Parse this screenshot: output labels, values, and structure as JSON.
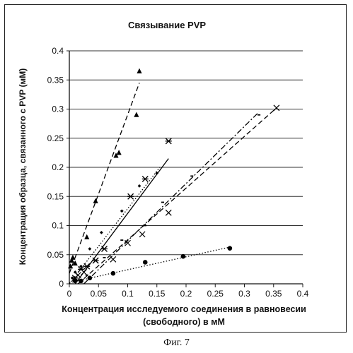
{
  "caption": "Фиг. 7",
  "chart_data": {
    "type": "scatter",
    "title": "Связывание PVP",
    "xlabel": "Концентрация исследуемого соединения в равновесии (свободного) в мМ",
    "xlabel_lines": [
      "Концентрация исследуемого соединения в равновесии",
      "(свободного) в мМ"
    ],
    "ylabel": "Концентрация образца, связанного с PVP (мМ)",
    "xlim": [
      0,
      0.4
    ],
    "ylim": [
      0,
      0.4
    ],
    "xticks": [
      "0",
      "0.05",
      "0.1",
      "0.15",
      "0.2",
      "0.25",
      "0.3",
      "0.35",
      "0.4"
    ],
    "yticks": [
      "0",
      "0.05",
      "0.1",
      "0.15",
      "0.2",
      "0.25",
      "0.3",
      "0.35",
      "0.4"
    ],
    "grid": "horizontal",
    "series": [
      {
        "marker": "triangle",
        "line": "dashed",
        "points": [
          [
            0.002,
            0.03
          ],
          [
            0.004,
            0.04
          ],
          [
            0.006,
            0.045
          ],
          [
            0.01,
            0.035
          ],
          [
            0.03,
            0.08
          ],
          [
            0.045,
            0.142
          ],
          [
            0.08,
            0.22
          ],
          [
            0.085,
            0.225
          ],
          [
            0.115,
            0.29
          ],
          [
            0.12,
            0.365
          ]
        ],
        "fit": [
          [
            0.0,
            0.018
          ],
          [
            0.12,
            0.345
          ]
        ]
      },
      {
        "marker": "diamond",
        "line": "dotted",
        "points": [
          [
            0.005,
            0.01
          ],
          [
            0.01,
            0.02
          ],
          [
            0.02,
            0.03
          ],
          [
            0.035,
            0.06
          ],
          [
            0.055,
            0.088
          ],
          [
            0.09,
            0.125
          ],
          [
            0.12,
            0.168
          ],
          [
            0.15,
            0.19
          ]
        ],
        "fit": [
          [
            0.0,
            0.0
          ],
          [
            0.155,
            0.2
          ]
        ]
      },
      {
        "marker": "star",
        "line": "solid",
        "points": [
          [
            0.01,
            0.01
          ],
          [
            0.02,
            0.025
          ],
          [
            0.03,
            0.03
          ],
          [
            0.045,
            0.04
          ],
          [
            0.06,
            0.06
          ],
          [
            0.105,
            0.15
          ],
          [
            0.13,
            0.18
          ],
          [
            0.17,
            0.245
          ]
        ],
        "fit": [
          [
            0.01,
            0.0
          ],
          [
            0.17,
            0.215
          ]
        ]
      },
      {
        "marker": "dash",
        "line": "dashdot",
        "points": [
          [
            0.01,
            0.005
          ],
          [
            0.03,
            0.015
          ],
          [
            0.06,
            0.045
          ],
          [
            0.09,
            0.075
          ],
          [
            0.13,
            0.1
          ],
          [
            0.16,
            0.14
          ],
          [
            0.21,
            0.185
          ],
          [
            0.325,
            0.29
          ]
        ],
        "fit": [
          [
            0.025,
            0.0
          ],
          [
            0.325,
            0.295
          ]
        ]
      },
      {
        "marker": "x",
        "line": "dashed",
        "points": [
          [
            0.015,
            0.015
          ],
          [
            0.025,
            0.02
          ],
          [
            0.045,
            0.04
          ],
          [
            0.075,
            0.042
          ],
          [
            0.1,
            0.07
          ],
          [
            0.125,
            0.085
          ],
          [
            0.17,
            0.122
          ],
          [
            0.355,
            0.302
          ]
        ],
        "fit": [
          [
            0.015,
            0.0
          ],
          [
            0.355,
            0.302
          ]
        ]
      },
      {
        "marker": "circle",
        "line": "dotted",
        "points": [
          [
            0.01,
            0.005
          ],
          [
            0.02,
            0.005
          ],
          [
            0.035,
            0.01
          ],
          [
            0.075,
            0.018
          ],
          [
            0.13,
            0.037
          ],
          [
            0.195,
            0.047
          ],
          [
            0.275,
            0.061
          ]
        ],
        "fit": [
          [
            0.0,
            0.002
          ],
          [
            0.275,
            0.063
          ]
        ]
      }
    ]
  }
}
